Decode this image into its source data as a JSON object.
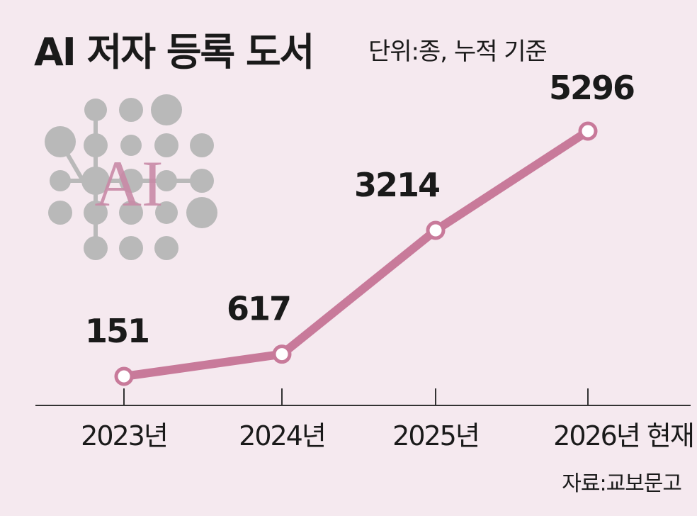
{
  "chart_data": {
    "type": "line",
    "title": "AI 저자 등록 도서",
    "subtitle": "단위:종, 누적 기준",
    "icon_label": "AI",
    "source": "자료:교보문고",
    "categories": [
      "2023년",
      "2024년",
      "2025년",
      "2026년 현재"
    ],
    "series": [
      {
        "color": "#c87a9a",
        "values": [
          151,
          617,
          3214,
          5296
        ]
      }
    ]
  }
}
